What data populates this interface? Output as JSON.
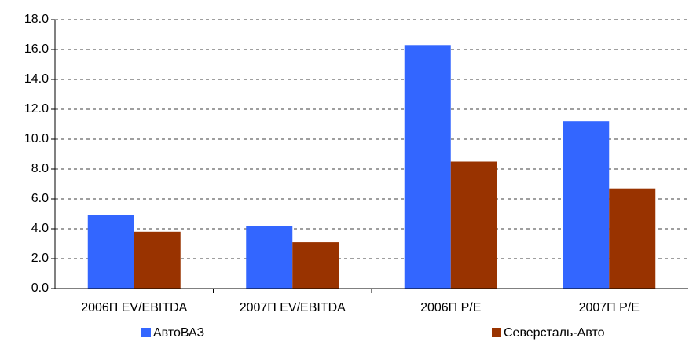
{
  "chart_data": {
    "type": "bar",
    "categories": [
      "2006П EV/EBITDA",
      "2007П EV/EBITDA",
      "2006П P/E",
      "2007П P/E"
    ],
    "series": [
      {
        "name": "АвтоВАЗ",
        "color": "#3366ff",
        "values": [
          4.9,
          4.2,
          16.3,
          11.2
        ]
      },
      {
        "name": "Северсталь-Авто",
        "color": "#993300",
        "values": [
          3.8,
          3.1,
          8.5,
          6.7
        ]
      }
    ],
    "ylim": [
      0,
      18
    ],
    "yticks": [
      {
        "value": 0,
        "label": "0.0"
      },
      {
        "value": 2,
        "label": "2.0"
      },
      {
        "value": 4,
        "label": "4.0"
      },
      {
        "value": 6,
        "label": "6.0"
      },
      {
        "value": 8,
        "label": "8.0"
      },
      {
        "value": 10,
        "label": "10.0"
      },
      {
        "value": 12,
        "label": "12.0"
      },
      {
        "value": 14,
        "label": "14.0"
      },
      {
        "value": 16,
        "label": "16.0"
      },
      {
        "value": 18,
        "label": "18.0"
      }
    ],
    "grid": true
  }
}
